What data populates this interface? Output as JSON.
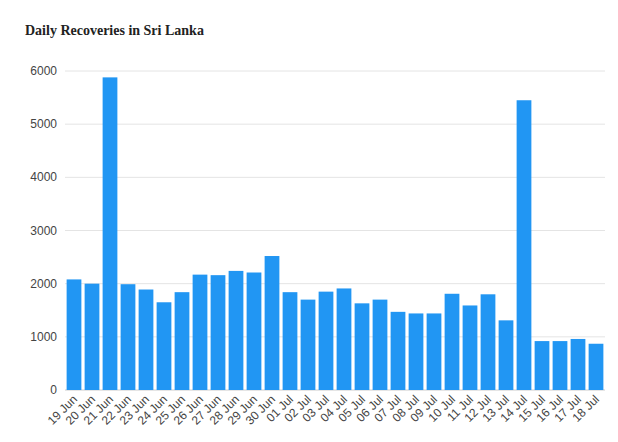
{
  "chart_data": {
    "type": "bar",
    "title": "Daily Recoveries in Sri Lanka",
    "categories": [
      "19 Jun",
      "20 Jun",
      "21 Jun",
      "22 Jun",
      "23 Jun",
      "24 Jun",
      "25 Jun",
      "26 Jun",
      "27 Jun",
      "28 Jun",
      "29 Jun",
      "30 Jun",
      "01 Jul",
      "02 Jul",
      "03 Jul",
      "04 Jul",
      "05 Jul",
      "06 Jul",
      "07 Jul",
      "08 Jul",
      "09 Jul",
      "10 Jul",
      "11 Jul",
      "12 Jul",
      "13 Jul",
      "14 Jul",
      "15 Jul",
      "16 Jul",
      "17 Jul",
      "18 Jul"
    ],
    "values": [
      2080,
      2000,
      5880,
      1990,
      1890,
      1650,
      1840,
      2170,
      2160,
      2240,
      2210,
      2520,
      1840,
      1700,
      1850,
      1910,
      1630,
      1700,
      1470,
      1440,
      1440,
      1810,
      1590,
      1800,
      1310,
      5450,
      920,
      920,
      960,
      870
    ],
    "color": "#2196f3",
    "ylim": [
      0,
      6000
    ],
    "yticks": [
      0,
      1000,
      2000,
      3000,
      4000,
      5000,
      6000
    ],
    "grid": true
  }
}
